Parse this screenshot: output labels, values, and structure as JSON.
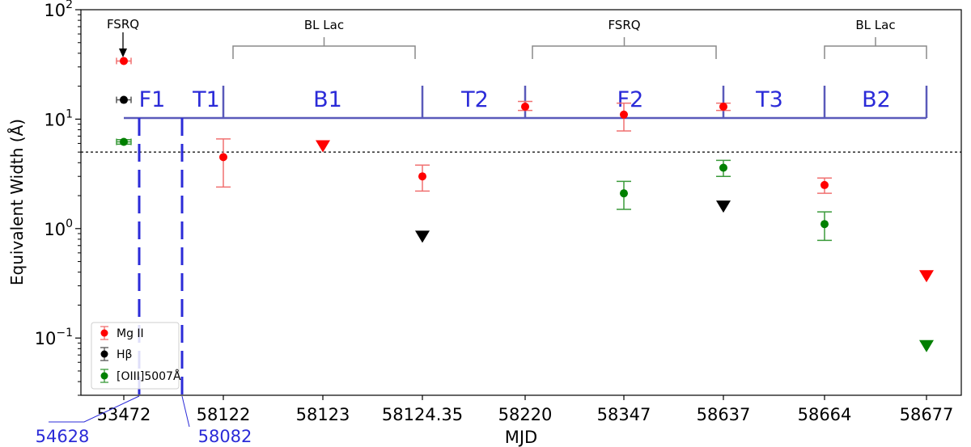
{
  "chart_data": {
    "type": "scatter",
    "xlabel": "MJD",
    "ylabel": "Equivalent Width (Å)",
    "yscale": "log",
    "ylim": [
      0.03,
      100
    ],
    "y_ticks": [
      {
        "base": "10",
        "exp": "−1",
        "value": 0.1
      },
      {
        "base": "10",
        "exp": "0",
        "value": 1
      },
      {
        "base": "10",
        "exp": "1",
        "value": 10
      },
      {
        "base": "10",
        "exp": "2",
        "value": 100
      }
    ],
    "categories": [
      "53472",
      "58122",
      "58123",
      "58124.35",
      "58220",
      "58347",
      "58637",
      "58664",
      "58677"
    ],
    "extra_labels": [
      "54628",
      "58082"
    ],
    "reference_line": 5,
    "grid": false,
    "legend_position": "bottom-left",
    "series": [
      {
        "name": "Mg II",
        "color": "#ff0000",
        "errcolor": "#f07070",
        "points": [
          {
            "x": "53472",
            "y": 34,
            "yerr": [
              34,
              34
            ],
            "type": "point",
            "xerr": true
          },
          {
            "x": "58122",
            "y": 4.5,
            "yerr": [
              2.4,
              6.6
            ],
            "type": "point"
          },
          {
            "x": "58123",
            "y": 5.7,
            "type": "upper"
          },
          {
            "x": "58124.35",
            "y": 3.0,
            "yerr": [
              2.2,
              3.8
            ],
            "type": "point"
          },
          {
            "x": "58220",
            "y": 13,
            "yerr": [
              12,
              14.5
            ],
            "type": "point"
          },
          {
            "x": "58347",
            "y": 11,
            "yerr": [
              7.8,
              14
            ],
            "type": "point"
          },
          {
            "x": "58637",
            "y": 13,
            "yerr": [
              12,
              14
            ],
            "type": "point"
          },
          {
            "x": "58664",
            "y": 2.5,
            "yerr": [
              2.1,
              2.9
            ],
            "type": "point"
          },
          {
            "x": "58677",
            "y": 0.37,
            "type": "upper"
          }
        ]
      },
      {
        "name": "Hβ",
        "color": "#000000",
        "errcolor": "#555555",
        "points": [
          {
            "x": "53472",
            "y": 15,
            "yerr": [
              15,
              15
            ],
            "type": "point",
            "xerr": true
          },
          {
            "x": "58124.35",
            "y": 0.85,
            "type": "upper"
          },
          {
            "x": "58637",
            "y": 1.6,
            "type": "upper"
          }
        ]
      },
      {
        "name": "[OIII]5007Å",
        "color": "#008000",
        "errcolor": "#3a9a3a",
        "points": [
          {
            "x": "53472",
            "y": 6.2,
            "yerr": [
              5.9,
              6.5
            ],
            "type": "point",
            "xerr": true
          },
          {
            "x": "58347",
            "y": 2.1,
            "yerr": [
              1.5,
              2.7
            ],
            "type": "point"
          },
          {
            "x": "58637",
            "y": 3.6,
            "yerr": [
              3.0,
              4.2
            ],
            "type": "point"
          },
          {
            "x": "58664",
            "y": 1.1,
            "yerr": [
              0.78,
              1.42
            ],
            "type": "point"
          },
          {
            "x": "58677",
            "y": 0.085,
            "type": "upper"
          }
        ]
      }
    ],
    "annotations": {
      "fsrq_top": "FSRQ",
      "brackets": [
        {
          "label": "BL Lac",
          "from": "58122",
          "to": "58124.35"
        },
        {
          "label": "FSRQ",
          "from": "58220",
          "to": "58637"
        },
        {
          "label": "BL Lac",
          "from": "58664",
          "to": "58677"
        }
      ],
      "segments": [
        "F1",
        "T1",
        "B1",
        "T2",
        "F2",
        "T3",
        "B2"
      ]
    }
  }
}
